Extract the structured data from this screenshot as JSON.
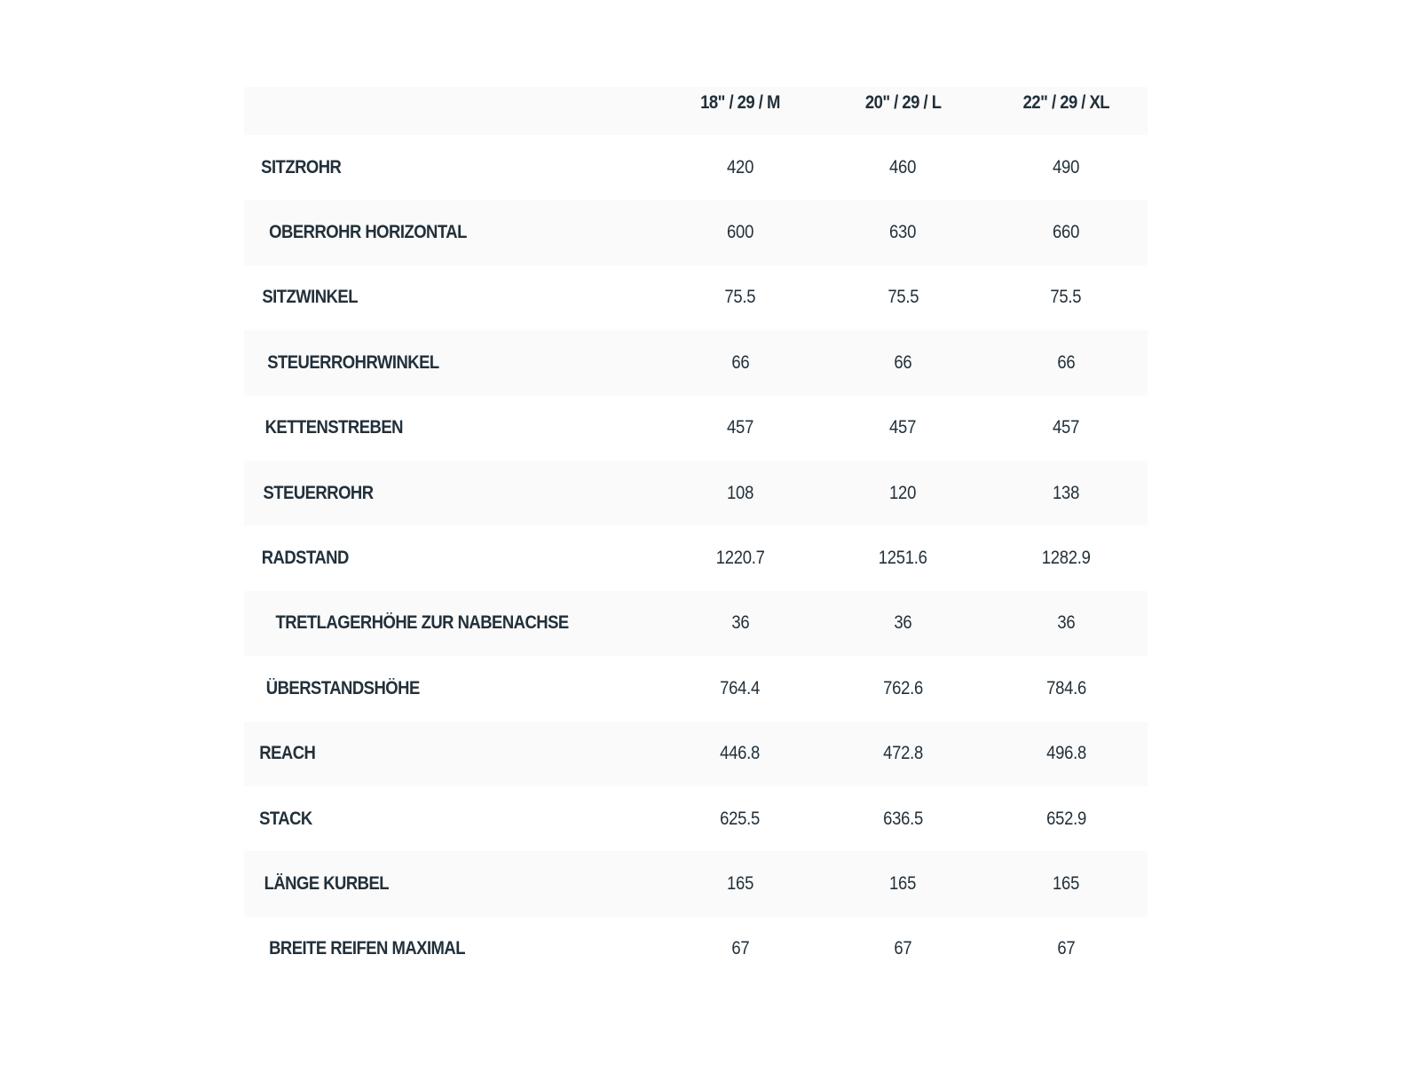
{
  "header": {
    "empty": "",
    "sizes": [
      "18\" / 29 / M",
      "20\" / 29 / L",
      "22\" / 29 / XL"
    ]
  },
  "rows": [
    {
      "label": "SITZROHR",
      "values": [
        "420",
        "460",
        "490"
      ]
    },
    {
      "label": "OBERROHR HORIZONTAL",
      "values": [
        "600",
        "630",
        "660"
      ]
    },
    {
      "label": "SITZWINKEL",
      "values": [
        "75.5",
        "75.5",
        "75.5"
      ]
    },
    {
      "label": "STEUERROHRWINKEL",
      "values": [
        "66",
        "66",
        "66"
      ]
    },
    {
      "label": "KETTENSTREBEN",
      "values": [
        "457",
        "457",
        "457"
      ]
    },
    {
      "label": "STEUERROHR",
      "values": [
        "108",
        "120",
        "138"
      ]
    },
    {
      "label": "RADSTAND",
      "values": [
        "1220.7",
        "1251.6",
        "1282.9"
      ]
    },
    {
      "label": "TRETLAGERHÖHE ZUR NABENACHSE",
      "values": [
        "36",
        "36",
        "36"
      ]
    },
    {
      "label": "ÜBERSTANDSHÖHE",
      "values": [
        "764.4",
        "762.6",
        "784.6"
      ]
    },
    {
      "label": "REACH",
      "values": [
        "446.8",
        "472.8",
        "496.8"
      ]
    },
    {
      "label": "STACK",
      "values": [
        "625.5",
        "636.5",
        "652.9"
      ]
    },
    {
      "label": "LÄNGE KURBEL",
      "values": [
        "165",
        "165",
        "165"
      ]
    },
    {
      "label": "BREITE REIFEN MAXIMAL",
      "values": [
        "67",
        "67",
        "67"
      ]
    }
  ]
}
